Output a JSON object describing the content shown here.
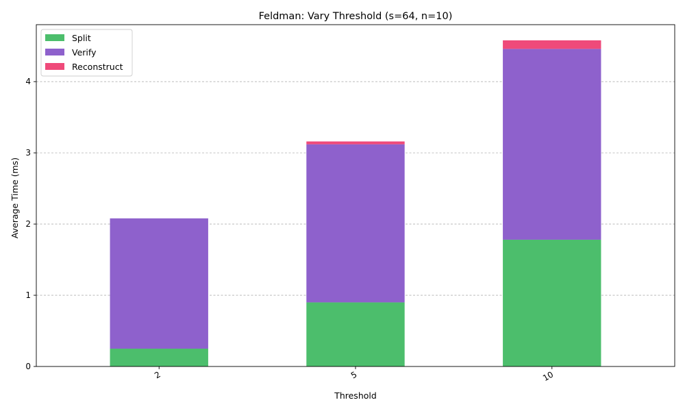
{
  "chart_data": {
    "type": "bar",
    "stacked": true,
    "title": "Feldman: Vary Threshold (s=64, n=10)",
    "xlabel": "Threshold",
    "ylabel": "Average Time (ms)",
    "categories": [
      "2",
      "5",
      "10"
    ],
    "series": [
      {
        "name": "Split",
        "color": "#4cbe6c",
        "values": [
          0.25,
          0.9,
          1.78
        ]
      },
      {
        "name": "Verify",
        "color": "#8e61cc",
        "values": [
          1.83,
          2.22,
          2.68
        ]
      },
      {
        "name": "Reconstruct",
        "color": "#ef4a7a",
        "values": [
          0.0,
          0.04,
          0.12
        ]
      }
    ],
    "ylim": [
      0,
      4.8
    ],
    "yticks": [
      0,
      1,
      2,
      3,
      4
    ],
    "grid": {
      "y": true,
      "x": false,
      "style": "dashed"
    },
    "legend": {
      "position": "top-left"
    }
  }
}
